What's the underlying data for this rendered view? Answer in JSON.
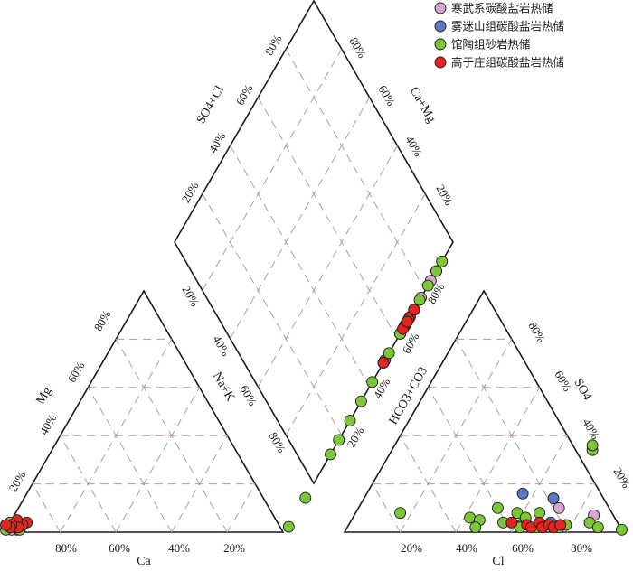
{
  "chart_data": {
    "type": "scatter",
    "subtype": "piper-diagram",
    "legend": {
      "placement": "top-right",
      "entries": [
        {
          "name": "寒武系碳酸盐岩热储",
          "color": "#d9a3d4"
        },
        {
          "name": "雾迷山组碳酸盐岩热储",
          "color": "#5b78c4"
        },
        {
          "name": "馆陶组砂岩热储",
          "color": "#7dc63a"
        },
        {
          "name": "高于庄组碳酸盐岩热储",
          "color": "#e0261e"
        }
      ]
    },
    "cation_triangle": {
      "labels": {
        "bottom": "Ca",
        "left": "Mg",
        "right": "Na+K"
      },
      "bottom_ticks": [
        "80%",
        "60%",
        "40%",
        "20%"
      ],
      "left_ticks": [
        "20%",
        "40%",
        "60%",
        "80%"
      ],
      "right_ticks": [
        "20%",
        "40%",
        "60%",
        "80%"
      ]
    },
    "anion_triangle": {
      "labels": {
        "bottom": "Cl",
        "left": "HCO3+CO3",
        "right": "SO4"
      },
      "bottom_ticks": [
        "20%",
        "40%",
        "60%",
        "80%"
      ],
      "left_ticks": [
        "20%",
        "40%",
        "60%",
        "80%"
      ],
      "right_ticks": [
        "20%",
        "40%",
        "60%",
        "80%"
      ]
    },
    "diamond": {
      "labels": {
        "upper_left": "SO4+Cl",
        "upper_right": "Ca+Mg"
      },
      "upper_left_ticks": [
        "20%",
        "40%",
        "60%",
        "80%"
      ],
      "upper_right_ticks": [
        "20%",
        "40%",
        "60%",
        "80%"
      ]
    },
    "series": [
      {
        "name": "寒武系碳酸盐岩热储",
        "color": "#d9a3d4",
        "cations": [
          [
            95,
            1
          ],
          [
            96,
            2
          ],
          [
            97,
            1
          ]
        ],
        "anions": [
          [
            70,
            2
          ],
          [
            72,
            10
          ],
          [
            86,
            7
          ]
        ],
        "diamond": [
          [
            15,
            8
          ],
          [
            8,
            8
          ]
        ]
      },
      {
        "name": "雾迷山组碳酸盐岩热储",
        "color": "#5b78c4",
        "cations": [
          [
            93,
            3
          ],
          [
            95,
            2
          ]
        ],
        "anions": [
          [
            62,
            3
          ],
          [
            56,
            16
          ],
          [
            68,
            14
          ],
          [
            72,
            4
          ]
        ],
        "diamond": [
          [
            14,
            20
          ],
          [
            18,
            16
          ],
          [
            23,
            26
          ]
        ]
      },
      {
        "name": "馆陶组砂岩热储",
        "color": "#7dc63a",
        "cations": [
          [
            93,
            3
          ],
          [
            94,
            1
          ],
          [
            97,
            2
          ],
          [
            99,
            1
          ],
          [
            96,
            4
          ]
        ],
        "anions": [
          [
            16,
            8
          ],
          [
            42,
            6
          ],
          [
            46,
            5
          ],
          [
            46,
            2
          ],
          [
            50,
            10
          ],
          [
            55,
            4
          ],
          [
            58,
            8
          ],
          [
            62,
            2
          ],
          [
            62,
            6
          ],
          [
            66,
            8
          ],
          [
            68,
            2
          ],
          [
            76,
            2
          ],
          [
            78,
            3
          ],
          [
            86,
            4
          ],
          [
            90,
            2
          ],
          [
            99,
            1
          ],
          [
            72,
            34
          ],
          [
            71,
            36
          ]
        ],
        "diamond": [
          [
            4,
            4
          ],
          [
            6,
            6
          ],
          [
            8,
            4
          ],
          [
            10,
            8
          ],
          [
            14,
            10
          ],
          [
            16,
            12
          ],
          [
            20,
            14
          ],
          [
            22,
            16
          ],
          [
            26,
            20
          ],
          [
            28,
            22
          ],
          [
            32,
            26
          ],
          [
            36,
            30
          ],
          [
            40,
            34
          ],
          [
            44,
            38
          ],
          [
            46,
            42
          ],
          [
            56,
            50
          ],
          [
            62,
            56
          ],
          [
            72,
            68
          ],
          [
            20,
            18
          ]
        ]
      },
      {
        "name": "高于庄组碳酸盐岩热储",
        "color": "#e0261e",
        "cations": [
          [
            90,
            4
          ],
          [
            92,
            3
          ],
          [
            93,
            5
          ],
          [
            94,
            2
          ],
          [
            96,
            3
          ],
          [
            97,
            2
          ],
          [
            98,
            3
          ]
        ],
        "anions": [
          [
            58,
            4
          ],
          [
            64,
            3
          ],
          [
            66,
            2
          ],
          [
            68,
            4
          ],
          [
            70,
            2
          ],
          [
            72,
            3
          ],
          [
            74,
            2
          ],
          [
            76,
            3
          ]
        ],
        "diamond": [
          [
            16,
            12
          ],
          [
            17,
            14
          ],
          [
            18,
            13
          ],
          [
            19,
            12
          ],
          [
            20,
            15
          ],
          [
            16,
            16
          ],
          [
            15,
            18
          ],
          [
            14,
            14
          ],
          [
            18,
            18
          ],
          [
            20,
            13
          ],
          [
            28,
            22
          ]
        ]
      }
    ]
  }
}
